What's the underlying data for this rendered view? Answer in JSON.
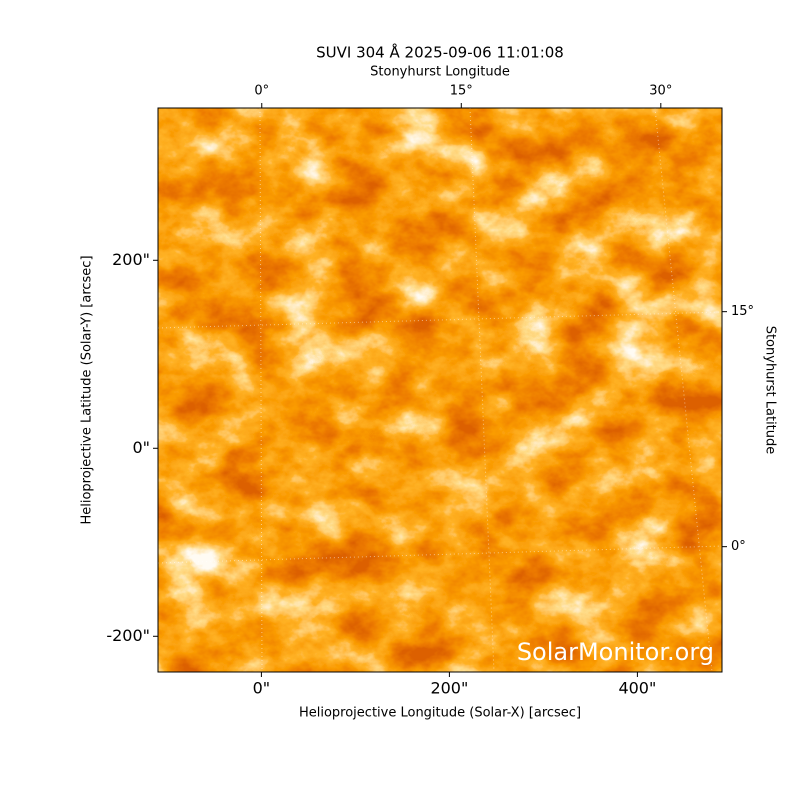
{
  "chart_data": {
    "type": "image",
    "title": "SUVI 304 Å 2025-09-06 11:01:08",
    "x_label": "Helioprojective Longitude (Solar-X) [arcsec]",
    "y_label": "Helioprojective Latitude (Solar-Y) [arcsec]",
    "x2_label": "Stonyhurst Longitude",
    "y2_label": "Stonyhurst Latitude",
    "watermark": "SolarMonitor.org",
    "xlim": [
      -110,
      490
    ],
    "ylim": [
      -238,
      362
    ],
    "xticks": [
      {
        "value": 0,
        "label": "0\""
      },
      {
        "value": 200,
        "label": "200\""
      },
      {
        "value": 400,
        "label": "400\""
      }
    ],
    "yticks": [
      {
        "value": -200,
        "label": "-200\""
      },
      {
        "value": 0,
        "label": "0\""
      },
      {
        "value": 200,
        "label": "200\""
      }
    ],
    "x2lim": [
      -7.8,
      34.6
    ],
    "x2ticks": [
      {
        "value": 0,
        "label": "0°"
      },
      {
        "value": 15,
        "label": "15°"
      },
      {
        "value": 30,
        "label": "30°"
      }
    ],
    "y2lim": [
      -8.0,
      28.0
    ],
    "y2ticks": [
      {
        "value": 0,
        "label": "0°"
      },
      {
        "value": 15,
        "label": "15°"
      }
    ]
  }
}
